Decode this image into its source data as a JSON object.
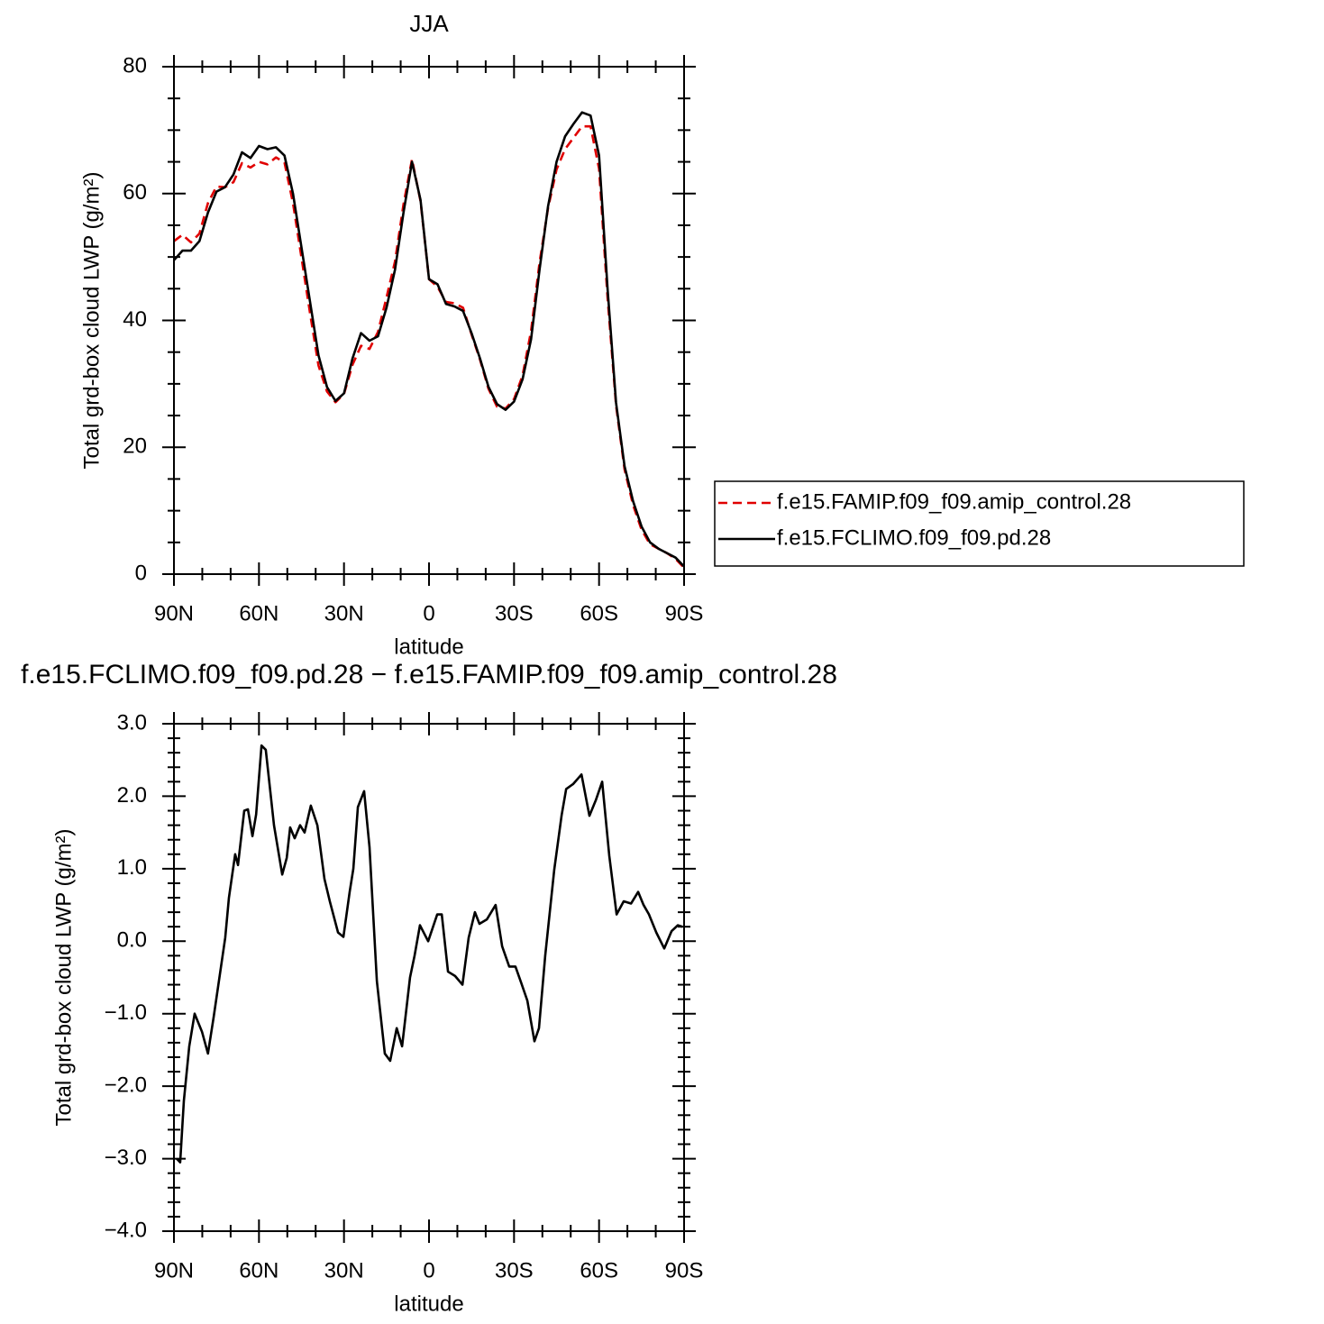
{
  "chart_data": [
    {
      "type": "line",
      "title": "JJA",
      "xlabel": "latitude",
      "ylabel": "Total grd-box cloud LWP (g/m²)",
      "x": [
        90,
        87,
        84,
        81,
        78,
        75,
        72,
        69,
        66,
        63,
        60,
        57,
        54,
        51,
        48,
        45,
        42,
        39,
        36,
        33,
        30,
        27,
        24,
        21,
        18,
        15,
        12,
        9,
        6,
        3,
        0,
        -3,
        -6,
        -9,
        -12,
        -15,
        -18,
        -21,
        -24,
        -27,
        -30,
        -33,
        -36,
        -39,
        -42,
        -45,
        -48,
        -51,
        -54,
        -57,
        -60,
        -63,
        -66,
        -69,
        -72,
        -75,
        -78,
        -81,
        -84,
        -87,
        -90
      ],
      "series": [
        {
          "name": "f.e15.FAMIP.f09_f09.amip_control.28",
          "color": "#e00000",
          "style": "dashed",
          "values": [
            52.5,
            53.5,
            52.3,
            53.7,
            58.5,
            61.1,
            61,
            61.8,
            64.8,
            64.1,
            65,
            64.6,
            65.7,
            64.9,
            58.5,
            49.9,
            41.2,
            32.9,
            28.8,
            27.1,
            28.4,
            33,
            36,
            35.5,
            38.2,
            43.6,
            49.3,
            58.3,
            65.4,
            58.8,
            46.5,
            45.3,
            42.9,
            42.7,
            42,
            37.8,
            33.8,
            29.2,
            26.4,
            26.1,
            27.6,
            31.3,
            38.3,
            49.1,
            57.7,
            63.8,
            67,
            68.8,
            70.6,
            70.6,
            63.9,
            43.6,
            26.6,
            16.5,
            10.9,
            7,
            4.7,
            4,
            3.3,
            2.4,
            1
          ]
        },
        {
          "name": "f.e15.FCLIMO.f09_f09.pd.28",
          "color": "#000000",
          "style": "solid",
          "values": [
            49.5,
            51,
            51,
            52.5,
            57,
            60.3,
            61,
            63,
            66.5,
            65.6,
            67.5,
            67,
            67.3,
            66,
            60,
            51.5,
            43,
            34.5,
            29.5,
            27.3,
            28.5,
            34,
            38,
            36.8,
            37.5,
            42,
            48,
            57,
            65,
            59,
            46.5,
            45.7,
            42.6,
            42.2,
            41.5,
            38,
            34,
            29.5,
            26.8,
            25.9,
            27.2,
            30.7,
            37,
            48,
            58,
            65,
            69,
            71,
            72.8,
            72.3,
            66,
            45,
            27,
            17,
            11.5,
            7.5,
            5,
            4,
            3.3,
            2.6,
            1.2
          ]
        }
      ],
      "xlim": [
        90,
        -90
      ],
      "xticks": [
        {
          "value": 90,
          "label": "90N"
        },
        {
          "value": 60,
          "label": "60N"
        },
        {
          "value": 30,
          "label": "30N"
        },
        0,
        {
          "value": -30,
          "label": "30S"
        },
        {
          "value": -60,
          "label": "60S"
        },
        {
          "value": -90,
          "label": "90S"
        }
      ],
      "ylim": [
        0,
        80
      ],
      "yticks": [
        0,
        20,
        40,
        60,
        80
      ],
      "legend": "right"
    },
    {
      "type": "line",
      "title": "f.e15.FCLIMO.f09_f09.pd.28 − f.e15.FAMIP.f09_f09.amip_control.28",
      "xlabel": "latitude",
      "ylabel": "Total grd-box cloud LWP (g/m²)",
      "x": [
        89,
        87.8,
        86.5,
        84.6,
        82.7,
        80.1,
        78,
        76,
        73.5,
        71.9,
        70.6,
        68.4,
        67.4,
        65.2,
        63.9,
        62.3,
        61,
        59.1,
        57.6,
        54.7,
        51.8,
        50.2,
        49,
        47.4,
        45.5,
        43.9,
        41.7,
        39.4,
        36.9,
        35,
        32.1,
        30.2,
        28,
        26.7,
        25.1,
        22.9,
        21,
        18.4,
        15.6,
        13.7,
        11.4,
        9.5,
        6.7,
        5.1,
        3.2,
        0.3,
        -2.9,
        -4.5,
        -6.7,
        -9.2,
        -11.8,
        -14,
        -16.2,
        -17.8,
        -20.4,
        -23.5,
        -25.8,
        -28.3,
        -30.5,
        -32.5,
        -34.7,
        -37.2,
        -38.8,
        -41,
        -44.2,
        -46.8,
        -48.4,
        -50.9,
        -53.8,
        -56.6,
        -58.9,
        -61.1,
        -63.6,
        -66.2,
        -68.7,
        -71.3,
        -73.8,
        -75.7,
        -77.6,
        -80.2,
        -83,
        -85.6,
        -87.8,
        -89.4
      ],
      "values": [
        -3.0,
        -3.05,
        -2.2,
        -1.45,
        -1.0,
        -1.25,
        -1.55,
        -1.05,
        -0.38,
        0.05,
        0.6,
        1.2,
        1.05,
        1.8,
        1.82,
        1.45,
        1.75,
        2.7,
        2.64,
        1.6,
        0.92,
        1.15,
        1.57,
        1.42,
        1.6,
        1.5,
        1.87,
        1.6,
        0.86,
        0.55,
        0.12,
        0.06,
        0.68,
        1.0,
        1.85,
        2.07,
        1.3,
        -0.55,
        -1.55,
        -1.65,
        -1.2,
        -1.45,
        -0.5,
        -0.2,
        0.22,
        0.0,
        0.37,
        0.37,
        -0.42,
        -0.48,
        -0.6,
        0.05,
        0.4,
        0.24,
        0.3,
        0.5,
        -0.07,
        -0.35,
        -0.35,
        -0.57,
        -0.82,
        -1.38,
        -1.2,
        -0.2,
        0.99,
        1.74,
        2.1,
        2.17,
        2.3,
        1.73,
        1.95,
        2.2,
        1.18,
        0.37,
        0.55,
        0.52,
        0.68,
        0.5,
        0.37,
        0.12,
        -0.1,
        0.14,
        0.22,
        0.2
      ],
      "color": "#000000",
      "style": "solid",
      "xlim": [
        90,
        -90
      ],
      "xticks": [
        {
          "value": 90,
          "label": "90N"
        },
        {
          "value": 60,
          "label": "60N"
        },
        {
          "value": 30,
          "label": "30N"
        },
        0,
        {
          "value": -30,
          "label": "30S"
        },
        {
          "value": -60,
          "label": "60S"
        },
        {
          "value": -90,
          "label": "90S"
        }
      ],
      "ylim": [
        -4,
        3
      ],
      "yticks": [
        {
          "value": -4,
          "label": "−4.0"
        },
        {
          "value": -3,
          "label": "−3.0"
        },
        {
          "value": -2,
          "label": "−2.0"
        },
        {
          "value": -1,
          "label": "−1.0"
        },
        {
          "value": 0,
          "label": "0.0"
        },
        {
          "value": 1,
          "label": "1.0"
        },
        {
          "value": 2,
          "label": "2.0"
        },
        {
          "value": 3,
          "label": "3.0"
        }
      ]
    }
  ]
}
